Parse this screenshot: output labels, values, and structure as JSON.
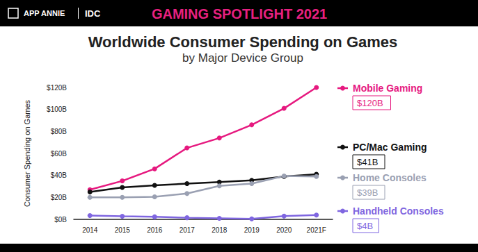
{
  "chart_data": {
    "type": "line",
    "banner": {
      "brand": "APP ANNIE",
      "partner": "IDC",
      "heading": "GAMING SPOTLIGHT 2021"
    },
    "title": "Worldwide Consumer Spending on Games",
    "subtitle": "by Major Device Group",
    "ylabel": "Consumer Spending on Games",
    "categories": [
      "2014",
      "2015",
      "2016",
      "2017",
      "2018",
      "2019",
      "2020",
      "2021F"
    ],
    "series": [
      {
        "name": "Mobile Gaming",
        "color": "#e6197f",
        "marker": "circle",
        "annotation": "$120B",
        "values": [
          27,
          35,
          46,
          65,
          74,
          86,
          101,
          120
        ]
      },
      {
        "name": "PC/Mac Gaming",
        "color": "#111111",
        "marker": "circle",
        "annotation": "$41B",
        "values": [
          25,
          29,
          31,
          32.5,
          34,
          35.5,
          39,
          41
        ]
      },
      {
        "name": "Home Consoles",
        "color": "#9aa0b2",
        "marker": "circle",
        "annotation": "$39B",
        "values": [
          20,
          20,
          20.5,
          23.5,
          30.5,
          32.5,
          39.5,
          39
        ]
      },
      {
        "name": "Handheld Consoles",
        "color": "#7f66e0",
        "marker": "circle",
        "annotation": "$4B",
        "values": [
          3.5,
          2.8,
          2.3,
          1.5,
          1,
          0.5,
          3,
          4
        ]
      }
    ],
    "ylim": [
      0,
      120
    ],
    "yticks": [
      {
        "value": 0,
        "label": "$0B"
      },
      {
        "value": 20,
        "label": "$20B"
      },
      {
        "value": 40,
        "label": "$40B"
      },
      {
        "value": 60,
        "label": "$60B"
      },
      {
        "value": 80,
        "label": "$80B"
      },
      {
        "value": 100,
        "label": "$100B"
      },
      {
        "value": 120,
        "label": "$120B"
      }
    ],
    "grid": false,
    "legend": "right"
  }
}
